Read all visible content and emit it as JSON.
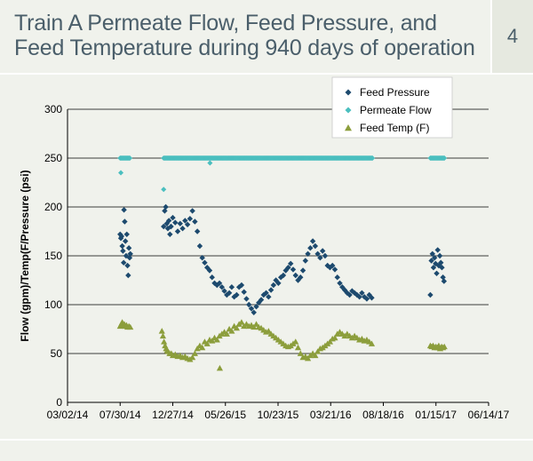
{
  "header": {
    "title": "Train A Permeate Flow, Feed Pressure, and\nFeed Temperature during 940 days of operation",
    "page_number": "4"
  },
  "chart_data": {
    "type": "scatter",
    "title": "",
    "ylabel": "Flow (gpm)/Temp(F/Pressure (psi)",
    "xlabel": "",
    "ylim": [
      0,
      300
    ],
    "yticks": [
      0,
      50,
      100,
      150,
      200,
      250,
      300
    ],
    "xticks": [
      "03/02/14",
      "07/30/14",
      "12/27/14",
      "05/26/15",
      "10/23/15",
      "03/21/16",
      "08/18/16",
      "01/15/17",
      "06/14/17"
    ],
    "xlim": [
      "03/02/14",
      "06/14/17"
    ],
    "grid": "horizontal",
    "legend_position": "top-right",
    "colors": {
      "feed_pressure": "#1d4a6e",
      "permeate_flow": "#4bbfbf",
      "feed_temp": "#8c9e3c"
    },
    "series": [
      {
        "name": "Feed Pressure",
        "marker": "diamond",
        "points": [
          [
            "2014-07-30",
            172
          ],
          [
            "2014-08-01",
            168
          ],
          [
            "2014-08-03",
            170
          ],
          [
            "2014-08-05",
            160
          ],
          [
            "2014-08-07",
            155
          ],
          [
            "2014-08-09",
            143
          ],
          [
            "2014-08-10",
            197
          ],
          [
            "2014-08-12",
            185
          ],
          [
            "2014-08-14",
            165
          ],
          [
            "2014-08-16",
            150
          ],
          [
            "2014-08-18",
            172
          ],
          [
            "2014-08-20",
            140
          ],
          [
            "2014-08-22",
            130
          ],
          [
            "2014-08-24",
            158
          ],
          [
            "2014-08-26",
            148
          ],
          [
            "2014-08-28",
            152
          ],
          [
            "2014-12-01",
            180
          ],
          [
            "2014-12-04",
            196
          ],
          [
            "2014-12-07",
            200
          ],
          [
            "2014-12-10",
            183
          ],
          [
            "2014-12-13",
            178
          ],
          [
            "2014-12-16",
            186
          ],
          [
            "2014-12-19",
            172
          ],
          [
            "2014-12-22",
            180
          ],
          [
            "2014-12-27",
            189
          ],
          [
            "2015-01-03",
            184
          ],
          [
            "2015-01-10",
            175
          ],
          [
            "2015-01-17",
            183
          ],
          [
            "2015-01-24",
            178
          ],
          [
            "2015-01-31",
            186
          ],
          [
            "2015-02-07",
            182
          ],
          [
            "2015-02-14",
            188
          ],
          [
            "2015-02-21",
            196
          ],
          [
            "2015-02-28",
            185
          ],
          [
            "2015-03-07",
            175
          ],
          [
            "2015-03-14",
            160
          ],
          [
            "2015-03-21",
            148
          ],
          [
            "2015-03-28",
            143
          ],
          [
            "2015-04-04",
            138
          ],
          [
            "2015-04-11",
            135
          ],
          [
            "2015-04-18",
            128
          ],
          [
            "2015-04-25",
            122
          ],
          [
            "2015-05-02",
            120
          ],
          [
            "2015-05-09",
            122
          ],
          [
            "2015-05-16",
            118
          ],
          [
            "2015-05-23",
            114
          ],
          [
            "2015-05-30",
            110
          ],
          [
            "2015-06-06",
            112
          ],
          [
            "2015-06-13",
            118
          ],
          [
            "2015-06-20",
            108
          ],
          [
            "2015-06-27",
            110
          ],
          [
            "2015-07-04",
            118
          ],
          [
            "2015-07-11",
            120
          ],
          [
            "2015-07-18",
            113
          ],
          [
            "2015-07-25",
            106
          ],
          [
            "2015-08-01",
            100
          ],
          [
            "2015-08-08",
            96
          ],
          [
            "2015-08-15",
            92
          ],
          [
            "2015-08-22",
            98
          ],
          [
            "2015-08-29",
            102
          ],
          [
            "2015-09-05",
            105
          ],
          [
            "2015-09-12",
            110
          ],
          [
            "2015-09-19",
            112
          ],
          [
            "2015-09-26",
            108
          ],
          [
            "2015-10-03",
            115
          ],
          [
            "2015-10-10",
            120
          ],
          [
            "2015-10-17",
            125
          ],
          [
            "2015-10-24",
            122
          ],
          [
            "2015-10-31",
            128
          ],
          [
            "2015-11-07",
            130
          ],
          [
            "2015-11-14",
            135
          ],
          [
            "2015-11-21",
            138
          ],
          [
            "2015-11-28",
            142
          ],
          [
            "2015-12-05",
            136
          ],
          [
            "2015-12-12",
            130
          ],
          [
            "2015-12-19",
            125
          ],
          [
            "2015-12-26",
            128
          ],
          [
            "2016-01-02",
            135
          ],
          [
            "2016-01-09",
            145
          ],
          [
            "2016-01-16",
            152
          ],
          [
            "2016-01-23",
            158
          ],
          [
            "2016-01-30",
            165
          ],
          [
            "2016-02-06",
            160
          ],
          [
            "2016-02-13",
            152
          ],
          [
            "2016-02-20",
            148
          ],
          [
            "2016-02-27",
            155
          ],
          [
            "2016-03-05",
            150
          ],
          [
            "2016-03-12",
            140
          ],
          [
            "2016-03-19",
            138
          ],
          [
            "2016-03-26",
            140
          ],
          [
            "2016-04-02",
            136
          ],
          [
            "2016-04-09",
            128
          ],
          [
            "2016-04-16",
            122
          ],
          [
            "2016-04-23",
            118
          ],
          [
            "2016-04-30",
            115
          ],
          [
            "2016-05-07",
            112
          ],
          [
            "2016-05-14",
            110
          ],
          [
            "2016-05-21",
            114
          ],
          [
            "2016-05-28",
            112
          ],
          [
            "2016-06-04",
            110
          ],
          [
            "2016-06-11",
            108
          ],
          [
            "2016-06-18",
            112
          ],
          [
            "2016-06-25",
            108
          ],
          [
            "2016-07-02",
            106
          ],
          [
            "2016-07-09",
            110
          ],
          [
            "2016-07-16",
            107
          ],
          [
            "2016-12-30",
            110
          ],
          [
            "2017-01-02",
            145
          ],
          [
            "2017-01-05",
            152
          ],
          [
            "2017-01-08",
            138
          ],
          [
            "2017-01-11",
            148
          ],
          [
            "2017-01-14",
            142
          ],
          [
            "2017-01-17",
            132
          ],
          [
            "2017-01-20",
            156
          ],
          [
            "2017-01-23",
            140
          ],
          [
            "2017-01-26",
            150
          ],
          [
            "2017-01-29",
            143
          ],
          [
            "2017-02-01",
            138
          ],
          [
            "2017-02-04",
            128
          ],
          [
            "2017-02-07",
            124
          ]
        ]
      },
      {
        "name": "Permeate Flow",
        "marker": "diamond",
        "range": [
          "2014-07-30",
          "2014-08-28",
          "2014-12-01",
          "2016-07-18",
          "2016-12-30",
          "2017-02-10"
        ],
        "value": 250,
        "outliers": [
          [
            "2014-08-01",
            235
          ],
          [
            "2014-12-01",
            218
          ],
          [
            "2015-04-12",
            245
          ]
        ]
      },
      {
        "name": "Feed Temp (F)",
        "marker": "triangle",
        "points": [
          [
            "2014-07-30",
            78
          ],
          [
            "2014-08-02",
            80
          ],
          [
            "2014-08-05",
            82
          ],
          [
            "2014-08-08",
            79
          ],
          [
            "2014-08-11",
            80
          ],
          [
            "2014-08-14",
            78
          ],
          [
            "2014-08-17",
            79
          ],
          [
            "2014-08-20",
            77
          ],
          [
            "2014-08-24",
            78
          ],
          [
            "2014-08-28",
            77
          ],
          [
            "2014-11-26",
            73
          ],
          [
            "2014-11-29",
            68
          ],
          [
            "2014-12-02",
            62
          ],
          [
            "2014-12-05",
            58
          ],
          [
            "2014-12-08",
            55
          ],
          [
            "2014-12-11",
            53
          ],
          [
            "2014-12-14",
            52
          ],
          [
            "2014-12-18",
            50
          ],
          [
            "2014-12-23",
            50
          ],
          [
            "2014-12-27",
            48
          ],
          [
            "2015-01-03",
            49
          ],
          [
            "2015-01-10",
            47
          ],
          [
            "2015-01-17",
            48
          ],
          [
            "2015-01-24",
            46
          ],
          [
            "2015-01-31",
            47
          ],
          [
            "2015-02-07",
            45
          ],
          [
            "2015-02-14",
            44
          ],
          [
            "2015-02-21",
            46
          ],
          [
            "2015-02-28",
            50
          ],
          [
            "2015-03-07",
            55
          ],
          [
            "2015-03-14",
            58
          ],
          [
            "2015-03-21",
            56
          ],
          [
            "2015-03-28",
            62
          ],
          [
            "2015-04-04",
            60
          ],
          [
            "2015-04-11",
            64
          ],
          [
            "2015-04-18",
            63
          ],
          [
            "2015-04-25",
            66
          ],
          [
            "2015-05-02",
            64
          ],
          [
            "2015-05-09",
            68
          ],
          [
            "2015-05-16",
            70
          ],
          [
            "2015-05-23",
            72
          ],
          [
            "2015-05-30",
            70
          ],
          [
            "2015-06-06",
            75
          ],
          [
            "2015-06-13",
            73
          ],
          [
            "2015-06-20",
            78
          ],
          [
            "2015-06-27",
            76
          ],
          [
            "2015-07-04",
            80
          ],
          [
            "2015-07-11",
            82
          ],
          [
            "2015-07-18",
            78
          ],
          [
            "2015-07-25",
            80
          ],
          [
            "2015-08-01",
            78
          ],
          [
            "2015-08-08",
            79
          ],
          [
            "2015-08-15",
            77
          ],
          [
            "2015-08-22",
            80
          ],
          [
            "2015-08-29",
            77
          ],
          [
            "2015-09-05",
            76
          ],
          [
            "2015-09-12",
            74
          ],
          [
            "2015-09-19",
            72
          ],
          [
            "2015-09-26",
            73
          ],
          [
            "2015-10-03",
            70
          ],
          [
            "2015-10-10",
            68
          ],
          [
            "2015-10-17",
            66
          ],
          [
            "2015-10-24",
            64
          ],
          [
            "2015-10-31",
            62
          ],
          [
            "2015-11-07",
            60
          ],
          [
            "2015-11-14",
            58
          ],
          [
            "2015-11-21",
            57
          ],
          [
            "2015-11-28",
            58
          ],
          [
            "2015-12-05",
            60
          ],
          [
            "2015-12-12",
            62
          ],
          [
            "2015-12-19",
            56
          ],
          [
            "2015-12-26",
            50
          ],
          [
            "2016-01-02",
            46
          ],
          [
            "2016-01-09",
            47
          ],
          [
            "2016-01-16",
            45
          ],
          [
            "2016-01-23",
            48
          ],
          [
            "2016-01-30",
            50
          ],
          [
            "2016-02-06",
            48
          ],
          [
            "2016-02-13",
            52
          ],
          [
            "2016-02-20",
            55
          ],
          [
            "2016-02-27",
            56
          ],
          [
            "2016-03-05",
            58
          ],
          [
            "2016-03-12",
            60
          ],
          [
            "2016-03-19",
            62
          ],
          [
            "2016-03-26",
            65
          ],
          [
            "2016-04-02",
            66
          ],
          [
            "2016-04-09",
            70
          ],
          [
            "2016-04-16",
            72
          ],
          [
            "2016-04-23",
            70
          ],
          [
            "2016-04-30",
            68
          ],
          [
            "2016-05-07",
            70
          ],
          [
            "2016-05-14",
            68
          ],
          [
            "2016-05-21",
            66
          ],
          [
            "2016-05-28",
            68
          ],
          [
            "2016-06-04",
            66
          ],
          [
            "2016-06-11",
            64
          ],
          [
            "2016-06-18",
            65
          ],
          [
            "2016-06-25",
            63
          ],
          [
            "2016-07-02",
            64
          ],
          [
            "2016-07-09",
            62
          ],
          [
            "2016-07-16",
            60
          ],
          [
            "2015-05-10",
            35
          ],
          [
            "2016-12-30",
            58
          ],
          [
            "2017-01-03",
            57
          ],
          [
            "2017-01-07",
            58
          ],
          [
            "2017-01-11",
            56
          ],
          [
            "2017-01-15",
            57
          ],
          [
            "2017-01-19",
            56
          ],
          [
            "2017-01-23",
            58
          ],
          [
            "2017-01-27",
            55
          ],
          [
            "2017-01-31",
            57
          ],
          [
            "2017-02-04",
            56
          ],
          [
            "2017-02-08",
            57
          ]
        ]
      }
    ]
  }
}
